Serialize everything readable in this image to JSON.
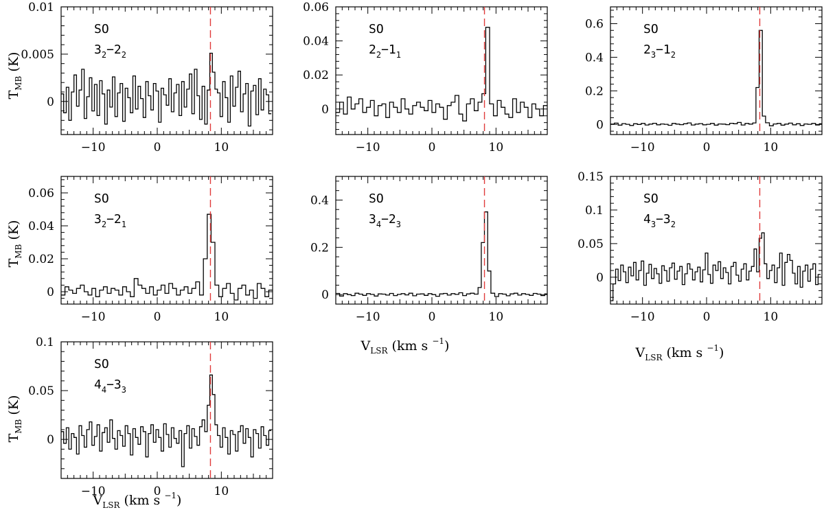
{
  "figure": {
    "xlabel": {
      "main": "V",
      "sub": "LSR",
      "unit": "(km s",
      "exp": "−1",
      "close": ")"
    },
    "ylabel": {
      "main": "T",
      "sub": "MB",
      "unit": "(K)"
    },
    "colors": {
      "line": "#000000",
      "marker": "#e03b3b",
      "background": "#ffffff"
    }
  },
  "chart_data": [
    {
      "type": "line",
      "step": true,
      "species": "SO",
      "transition": {
        "j_up": "3",
        "k_up": "2",
        "j_lo": "2",
        "k_lo": "2"
      },
      "xlim": [
        -15,
        18
      ],
      "ylim": [
        -0.0035,
        0.01
      ],
      "yticks": [
        0,
        0.005,
        0.01
      ],
      "yticklabels": [
        "0",
        "0.005",
        "0.01"
      ],
      "xticks": [
        -10,
        0,
        10
      ],
      "xticklabels": [
        "−10",
        "0",
        "10"
      ],
      "vline": 8.3,
      "show_ylabel": true,
      "show_xlabel": false,
      "x": [
        -15,
        -14.6,
        -14.2,
        -13.8,
        -13.4,
        -13,
        -12.6,
        -12.2,
        -11.8,
        -11.4,
        -11,
        -10.6,
        -10.2,
        -9.8,
        -9.4,
        -9,
        -8.6,
        -8.2,
        -7.8,
        -7.4,
        -7,
        -6.6,
        -6.2,
        -5.8,
        -5.4,
        -5,
        -4.6,
        -4.2,
        -3.8,
        -3.4,
        -3,
        -2.6,
        -2.2,
        -1.8,
        -1.4,
        -1,
        -0.6,
        -0.2,
        0.2,
        0.6,
        1,
        1.4,
        1.8,
        2.2,
        2.6,
        3,
        3.4,
        3.8,
        4.2,
        4.6,
        5,
        5.4,
        5.8,
        6.2,
        6.6,
        7,
        7.4,
        7.8,
        8.2,
        8.6,
        9,
        9.4,
        9.8,
        10.2,
        10.6,
        11,
        11.4,
        11.8,
        12.2,
        12.6,
        13,
        13.4,
        13.8,
        14.2,
        14.6,
        15,
        15.4,
        15.8,
        16.2,
        16.6,
        17,
        17.4
      ],
      "values": [
        0.0008,
        -0.0012,
        0.0015,
        -0.002,
        0.001,
        0.0028,
        -0.0005,
        0.0012,
        0.0034,
        -0.0018,
        0.0005,
        0.0025,
        -0.001,
        0.0018,
        -0.0015,
        0.0022,
        0.0008,
        -0.0024,
        0.0012,
        -0.0006,
        0.0026,
        -0.0016,
        0.0009,
        0.0019,
        -0.0021,
        0.0014,
        0.0004,
        -0.0012,
        0.0027,
        -0.0008,
        0.0016,
        0.0003,
        -0.0017,
        0.0021,
        0.0006,
        -0.0009,
        0.0019,
        0.0011,
        -0.0022,
        0.0014,
        0.0007,
        -0.0004,
        0.0024,
        -0.0011,
        0.0009,
        0.0018,
        -0.0015,
        0.0021,
        -0.0006,
        0.0013,
        0.0029,
        -0.0013,
        0.0034,
        0.0006,
        -0.0019,
        0.0016,
        -0.0024,
        0.0012,
        0.0051,
        0.0031,
        0.0013,
        0.0009,
        -0.0016,
        0.0021,
        0.0004,
        -0.0022,
        0.0027,
        -0.0005,
        0.0015,
        0.0032,
        -0.0011,
        0.0008,
        0.0019,
        -0.0026,
        0.0011,
        0.0017,
        -0.0014,
        0.0024,
        -0.0009,
        0.0013,
        0.0007,
        -0.0013
      ]
    },
    {
      "type": "line",
      "step": true,
      "species": "SO",
      "transition": {
        "j_up": "2",
        "k_up": "2",
        "j_lo": "1",
        "k_lo": "1"
      },
      "xlim": [
        -15,
        18
      ],
      "ylim": [
        -0.015,
        0.06
      ],
      "yticks": [
        0,
        0.02,
        0.04,
        0.06
      ],
      "yticklabels": [
        "0",
        "0.02",
        "0.04",
        "0.06"
      ],
      "xticks": [
        -10,
        0,
        10
      ],
      "xticklabels": [
        "−10",
        "0",
        "10"
      ],
      "vline": 8.2,
      "show_ylabel": false,
      "show_xlabel": true,
      "x": [
        -15,
        -14.4,
        -13.8,
        -13.2,
        -12.6,
        -12,
        -11.4,
        -10.8,
        -10.2,
        -9.6,
        -9,
        -8.4,
        -7.8,
        -7.2,
        -6.6,
        -6,
        -5.4,
        -4.8,
        -4.2,
        -3.6,
        -3,
        -2.4,
        -1.8,
        -1.2,
        -0.6,
        0,
        0.6,
        1.2,
        1.8,
        2.4,
        3,
        3.6,
        4.2,
        4.8,
        5.4,
        6,
        6.6,
        7.2,
        7.8,
        8.4,
        9,
        9.6,
        10.2,
        10.8,
        11.4,
        12,
        12.6,
        13.2,
        13.8,
        14.4,
        15,
        15.6,
        16.2,
        16.8,
        17.4
      ],
      "values": [
        -0.002,
        0.004,
        -0.003,
        0.007,
        0,
        0.003,
        0.006,
        -0.002,
        0.001,
        0.005,
        -0.004,
        0.002,
        0.003,
        -0.005,
        0.004,
        0.001,
        -0.002,
        0.006,
        0,
        -0.003,
        0.002,
        0.004,
        0.001,
        -0.001,
        0.005,
        -0.002,
        0.003,
        0.001,
        -0.006,
        0.002,
        0.004,
        0.008,
        -0.003,
        -0.007,
        0.003,
        0.006,
        -0.001,
        0.004,
        0.009,
        0.048,
        0.003,
        -0.004,
        0.005,
        0.001,
        -0.003,
        -0.005,
        0.006,
        -0.002,
        0.004,
        0.001,
        -0.005,
        0.003,
        0,
        -0.004,
        0.002
      ]
    },
    {
      "type": "line",
      "step": true,
      "species": "SO",
      "transition": {
        "j_up": "2",
        "k_up": "3",
        "j_lo": "1",
        "k_lo": "2"
      },
      "xlim": [
        -15,
        18
      ],
      "ylim": [
        -0.06,
        0.7
      ],
      "yticks": [
        0,
        0.2,
        0.4,
        0.6
      ],
      "yticklabels": [
        "0",
        "0.2",
        "0.4",
        "0.6"
      ],
      "xticks": [
        -10,
        0,
        10
      ],
      "xticklabels": [
        "−10",
        "0",
        "10"
      ],
      "vline": 8.3,
      "show_ylabel": false,
      "show_xlabel": true,
      "x": [
        -15,
        -14.4,
        -13.8,
        -13.2,
        -12.6,
        -12,
        -11.4,
        -10.8,
        -10.2,
        -9.6,
        -9,
        -8.4,
        -7.8,
        -7.2,
        -6.6,
        -6,
        -5.4,
        -4.8,
        -4.2,
        -3.6,
        -3,
        -2.4,
        -1.8,
        -1.2,
        -0.6,
        0,
        0.6,
        1.2,
        1.8,
        2.4,
        3,
        3.6,
        4.2,
        4.8,
        5.4,
        6,
        6.6,
        7.2,
        7.7,
        8.2,
        8.7,
        9.2,
        9.8,
        10.4,
        11,
        11.6,
        12.2,
        12.8,
        13.4,
        14,
        14.6,
        15.2,
        15.8,
        16.4,
        17,
        17.6
      ],
      "values": [
        0.002,
        0.008,
        -0.004,
        0.005,
        0.001,
        -0.006,
        0.004,
        0,
        0.006,
        -0.003,
        0.002,
        0.007,
        -0.002,
        0.003,
        0.001,
        -0.005,
        0.006,
        0.002,
        -0.001,
        0.004,
        0.009,
        -0.003,
        0.002,
        0.005,
        -0.002,
        0.001,
        0.006,
        -0.004,
        0.003,
        0.002,
        -0.001,
        0.007,
        0.004,
        0.012,
        -0.003,
        0.006,
        0.002,
        0.009,
        0.22,
        0.56,
        0.05,
        0.01,
        -0.008,
        0.003,
        0.006,
        -0.004,
        0.002,
        0.008,
        -0.002,
        0.004,
        -0.006,
        0.003,
        0.001,
        0.006,
        -0.003,
        0.004
      ]
    },
    {
      "type": "line",
      "step": true,
      "species": "SO",
      "transition": {
        "j_up": "3",
        "k_up": "2",
        "j_lo": "2",
        "k_lo": "1"
      },
      "xlim": [
        -15,
        18
      ],
      "ylim": [
        -0.0075,
        0.07
      ],
      "yticks": [
        0,
        0.02,
        0.04,
        0.06
      ],
      "yticklabels": [
        "0",
        "0.02",
        "0.04",
        "0.06"
      ],
      "xticks": [
        -10,
        0,
        10
      ],
      "xticklabels": [
        "−10",
        "0",
        "10"
      ],
      "vline": 8.3,
      "show_ylabel": true,
      "show_xlabel": false,
      "x": [
        -15,
        -14.4,
        -13.8,
        -13.2,
        -12.6,
        -12,
        -11.4,
        -10.8,
        -10.2,
        -9.6,
        -9,
        -8.4,
        -7.8,
        -7.2,
        -6.6,
        -6,
        -5.4,
        -4.8,
        -4.2,
        -3.6,
        -3,
        -2.4,
        -1.8,
        -1.2,
        -0.6,
        0,
        0.6,
        1.2,
        1.8,
        2.4,
        3,
        3.6,
        4.2,
        4.8,
        5.4,
        6,
        6.6,
        7.2,
        7.8,
        8.4,
        9,
        9.6,
        10.2,
        10.8,
        11.4,
        12,
        12.6,
        13.2,
        13.8,
        14.4,
        15,
        15.6,
        16.2,
        16.8,
        17.4
      ],
      "values": [
        -0.002,
        0.003,
        0.001,
        -0.001,
        0.002,
        0.004,
        0,
        -0.002,
        0.002,
        -0.003,
        0.001,
        0.003,
        -0.001,
        0.002,
        0.001,
        -0.002,
        0.003,
        0,
        -0.003,
        0.008,
        0.004,
        0.002,
        -0.001,
        0.003,
        -0.002,
        0.001,
        0.004,
        -0.001,
        0.005,
        0.002,
        -0.002,
        0.001,
        0.003,
        -0.001,
        0.002,
        0.006,
        -0.002,
        0.02,
        0.047,
        0.03,
        0.004,
        -0.003,
        0.002,
        0.005,
        -0.001,
        -0.005,
        0.002,
        0.004,
        -0.002,
        0.001,
        -0.004,
        0.005,
        0.002,
        -0.003,
        0.001
      ]
    },
    {
      "type": "line",
      "step": true,
      "species": "SO",
      "transition": {
        "j_up": "3",
        "k_up": "4",
        "j_lo": "2",
        "k_lo": "3"
      },
      "xlim": [
        -15,
        18
      ],
      "ylim": [
        -0.04,
        0.5
      ],
      "yticks": [
        0,
        0.2,
        0.4
      ],
      "yticklabels": [
        "0",
        "0.2",
        "0.4"
      ],
      "xticks": [
        -10,
        0,
        10
      ],
      "xticklabels": [
        "−10",
        "0",
        "10"
      ],
      "vline": 8.2,
      "show_ylabel": false,
      "show_xlabel": true,
      "x": [
        -15,
        -14.4,
        -13.8,
        -13.2,
        -12.6,
        -12,
        -11.4,
        -10.8,
        -10.2,
        -9.6,
        -9,
        -8.4,
        -7.8,
        -7.2,
        -6.6,
        -6,
        -5.4,
        -4.8,
        -4.2,
        -3.6,
        -3,
        -2.4,
        -1.8,
        -1.2,
        -0.6,
        0,
        0.6,
        1.2,
        1.8,
        2.4,
        3,
        3.6,
        4.2,
        4.8,
        5.4,
        6,
        6.6,
        7.2,
        7.7,
        8.2,
        8.7,
        9.2,
        9.8,
        10.4,
        11,
        11.6,
        12.2,
        12.8,
        13.4,
        14,
        14.6,
        15.2,
        15.8,
        16.4,
        17,
        17.6
      ],
      "values": [
        0.005,
        -0.006,
        0.004,
        0,
        -0.004,
        0.006,
        0.002,
        -0.003,
        0.004,
        0.001,
        -0.006,
        0.003,
        0.002,
        -0.002,
        0.005,
        -0.004,
        0.001,
        0.004,
        -0.001,
        0.006,
        -0.005,
        0.002,
        0.003,
        -0.003,
        0.004,
        0,
        -0.007,
        0.003,
        0.005,
        -0.002,
        0.004,
        0.001,
        0.008,
        -0.004,
        0.003,
        0.006,
        0.002,
        0.03,
        0.22,
        0.35,
        0.1,
        0.006,
        -0.008,
        0.004,
        0.002,
        -0.005,
        0.003,
        0.006,
        -0.002,
        0.004,
        0.001,
        -0.003,
        0.005,
        0.002,
        -0.004,
        0.003
      ]
    },
    {
      "type": "line",
      "step": true,
      "species": "SO",
      "transition": {
        "j_up": "4",
        "k_up": "3",
        "j_lo": "3",
        "k_lo": "2"
      },
      "xlim": [
        -15,
        18
      ],
      "ylim": [
        -0.04,
        0.15
      ],
      "yticks": [
        0,
        0.05,
        0.1,
        0.15
      ],
      "yticklabels": [
        "0",
        "0.05",
        "0.1",
        "0.15"
      ],
      "xticks": [
        -10,
        0,
        10
      ],
      "xticklabels": [
        "−10",
        "0",
        "10"
      ],
      "vline": 8.3,
      "show_ylabel": false,
      "show_xlabel": true,
      "x": [
        -15,
        -14.6,
        -14.2,
        -13.8,
        -13.4,
        -13,
        -12.6,
        -12.2,
        -11.8,
        -11.4,
        -11,
        -10.6,
        -10.2,
        -9.8,
        -9.4,
        -9,
        -8.6,
        -8.2,
        -7.8,
        -7.4,
        -7,
        -6.6,
        -6.2,
        -5.8,
        -5.4,
        -5,
        -4.6,
        -4.2,
        -3.8,
        -3.4,
        -3,
        -2.6,
        -2.2,
        -1.8,
        -1.4,
        -1,
        -0.6,
        -0.2,
        0.2,
        0.6,
        1,
        1.4,
        1.8,
        2.2,
        2.6,
        3,
        3.4,
        3.8,
        4.2,
        4.6,
        5,
        5.4,
        5.8,
        6.2,
        6.6,
        7,
        7.4,
        7.8,
        8.2,
        8.6,
        9,
        9.4,
        9.8,
        10.2,
        10.6,
        11,
        11.4,
        11.8,
        12.2,
        12.6,
        13,
        13.4,
        13.8,
        14.2,
        14.6,
        15,
        15.4,
        15.8,
        16.2,
        16.6,
        17,
        17.4
      ],
      "values": [
        -0.035,
        -0.01,
        0.012,
        -0.005,
        0.018,
        0.008,
        -0.008,
        0.015,
        0.002,
        0.022,
        -0.004,
        0.01,
        0.024,
        -0.012,
        0.006,
        0.019,
        -0.002,
        0.013,
        0.005,
        -0.009,
        0.017,
        0.01,
        -0.006,
        0.014,
        0.021,
        -0.003,
        0.009,
        0.016,
        -0.011,
        0.005,
        0.02,
        0.012,
        -0.004,
        0.008,
        0.015,
        -0.007,
        0.011,
        0.036,
        0.004,
        -0.009,
        0.018,
        0.01,
        0.023,
        -0.002,
        0.014,
        0.007,
        -0.01,
        0.016,
        0.022,
        0.003,
        -0.006,
        0.012,
        0.02,
        -0.004,
        0.009,
        0.016,
        0.042,
        0.008,
        0.058,
        0.066,
        0.02,
        -0.002,
        0.01,
        0.018,
        -0.008,
        0.014,
        0.036,
        -0.012,
        0.022,
        0.034,
        0.025,
        0.006,
        -0.01,
        0.016,
        -0.015,
        0.009,
        0.018,
        -0.006,
        0.012,
        0.02,
        -0.011,
        0.004
      ]
    },
    {
      "type": "line",
      "step": true,
      "species": "SO",
      "transition": {
        "j_up": "4",
        "k_up": "4",
        "j_lo": "3",
        "k_lo": "3"
      },
      "xlim": [
        -15,
        18
      ],
      "ylim": [
        -0.04,
        0.1
      ],
      "yticks": [
        0,
        0.05,
        0.1
      ],
      "yticklabels": [
        "0",
        "0.05",
        "0.1"
      ],
      "xticks": [
        -10,
        0,
        10
      ],
      "xticklabels": [
        "−10",
        "0",
        "10"
      ],
      "vline": 8.3,
      "show_ylabel": true,
      "show_xlabel": true,
      "x": [
        -15,
        -14.6,
        -14.2,
        -13.8,
        -13.4,
        -13,
        -12.6,
        -12.2,
        -11.8,
        -11.4,
        -11,
        -10.6,
        -10.2,
        -9.8,
        -9.4,
        -9,
        -8.6,
        -8.2,
        -7.8,
        -7.4,
        -7,
        -6.6,
        -6.2,
        -5.8,
        -5.4,
        -5,
        -4.6,
        -4.2,
        -3.8,
        -3.4,
        -3,
        -2.6,
        -2.2,
        -1.8,
        -1.4,
        -1,
        -0.6,
        -0.2,
        0.2,
        0.6,
        1,
        1.4,
        1.8,
        2.2,
        2.6,
        3,
        3.4,
        3.8,
        4.2,
        4.6,
        5,
        5.4,
        5.8,
        6.2,
        6.6,
        7,
        7.4,
        7.8,
        8.2,
        8.6,
        9,
        9.4,
        9.8,
        10.2,
        10.6,
        11,
        11.4,
        11.8,
        12.2,
        12.6,
        13,
        13.4,
        13.8,
        14.2,
        14.6,
        15,
        15.4,
        15.8,
        16.2,
        16.6,
        17,
        17.4
      ],
      "values": [
        0.008,
        -0.004,
        0.012,
        -0.01,
        0.006,
        0.002,
        -0.015,
        0.014,
        0.004,
        -0.008,
        0.01,
        0.018,
        -0.006,
        0.003,
        0.015,
        -0.012,
        0.007,
        0.012,
        -0.003,
        0.02,
        0.001,
        -0.01,
        0.009,
        0.004,
        -0.007,
        0.014,
        0.006,
        -0.016,
        0.011,
        0.002,
        -0.005,
        0.013,
        0.008,
        -0.018,
        0.006,
        0.015,
        -0.003,
        0.01,
        0.002,
        -0.012,
        0.016,
        0.005,
        -0.008,
        0.012,
        0.001,
        -0.004,
        0.009,
        -0.028,
        0.006,
        0.014,
        -0.009,
        0.011,
        0.003,
        -0.006,
        0.013,
        0.02,
        0.008,
        0.035,
        0.066,
        0.046,
        0.015,
        0.004,
        -0.008,
        0.012,
        0.002,
        -0.015,
        0.009,
        0.005,
        -0.012,
        0.008,
        0.014,
        -0.004,
        0.011,
        0.002,
        -0.018,
        0.01,
        0.006,
        -0.009,
        0.013,
        0.004,
        -0.006,
        0.009
      ]
    }
  ]
}
